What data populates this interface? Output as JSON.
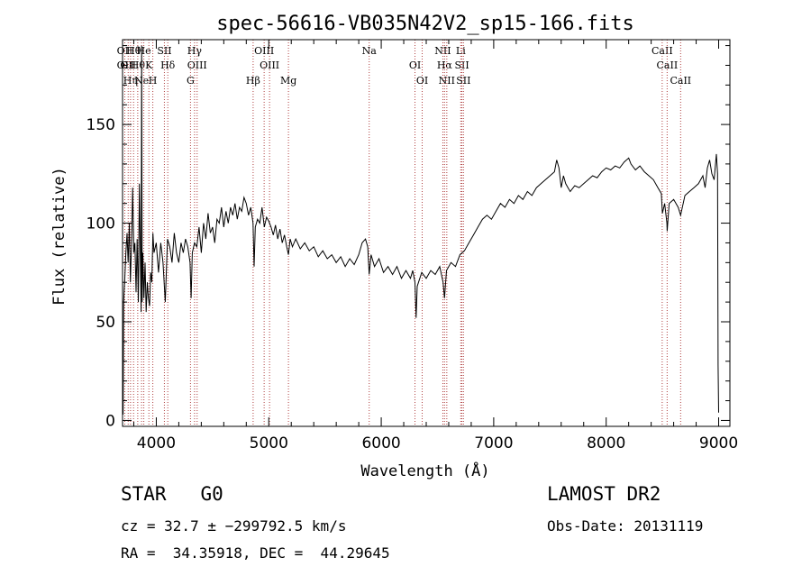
{
  "chart_data": {
    "type": "line",
    "title": "spec-56616-VB035N42V2_sp15-166.fits",
    "xlabel": "Wavelength (Å)",
    "ylabel": "Flux (relative)",
    "xlim": [
      3700,
      9100
    ],
    "ylim": [
      -3,
      193
    ],
    "x_ticks": [
      4000,
      5000,
      6000,
      7000,
      8000,
      9000
    ],
    "y_ticks": [
      0,
      50,
      100,
      150
    ],
    "grid": false,
    "series": [
      {
        "color": "#000000",
        "points": [
          [
            3700,
            28
          ],
          [
            3705,
            3
          ],
          [
            3710,
            60
          ],
          [
            3720,
            72
          ],
          [
            3730,
            85
          ],
          [
            3740,
            95
          ],
          [
            3750,
            80
          ],
          [
            3760,
            100
          ],
          [
            3770,
            70
          ],
          [
            3780,
            90
          ],
          [
            3790,
            118
          ],
          [
            3800,
            85
          ],
          [
            3810,
            90
          ],
          [
            3820,
            65
          ],
          [
            3830,
            92
          ],
          [
            3840,
            60
          ],
          [
            3850,
            120
          ],
          [
            3860,
            75
          ],
          [
            3865,
            55
          ],
          [
            3870,
            190
          ],
          [
            3875,
            60
          ],
          [
            3880,
            85
          ],
          [
            3890,
            62
          ],
          [
            3900,
            80
          ],
          [
            3910,
            55
          ],
          [
            3920,
            70
          ],
          [
            3930,
            62
          ],
          [
            3940,
            58
          ],
          [
            3950,
            75
          ],
          [
            3960,
            70
          ],
          [
            3970,
            95
          ],
          [
            3980,
            85
          ],
          [
            4000,
            90
          ],
          [
            4020,
            75
          ],
          [
            4040,
            90
          ],
          [
            4060,
            80
          ],
          [
            4080,
            60
          ],
          [
            4100,
            92
          ],
          [
            4120,
            88
          ],
          [
            4140,
            80
          ],
          [
            4160,
            95
          ],
          [
            4180,
            85
          ],
          [
            4200,
            80
          ],
          [
            4220,
            90
          ],
          [
            4240,
            85
          ],
          [
            4260,
            92
          ],
          [
            4280,
            88
          ],
          [
            4300,
            80
          ],
          [
            4310,
            62
          ],
          [
            4320,
            85
          ],
          [
            4340,
            90
          ],
          [
            4360,
            88
          ],
          [
            4380,
            98
          ],
          [
            4400,
            85
          ],
          [
            4420,
            100
          ],
          [
            4440,
            92
          ],
          [
            4460,
            105
          ],
          [
            4480,
            95
          ],
          [
            4500,
            98
          ],
          [
            4520,
            90
          ],
          [
            4540,
            102
          ],
          [
            4560,
            100
          ],
          [
            4580,
            108
          ],
          [
            4600,
            98
          ],
          [
            4620,
            106
          ],
          [
            4640,
            100
          ],
          [
            4660,
            108
          ],
          [
            4680,
            104
          ],
          [
            4700,
            110
          ],
          [
            4720,
            102
          ],
          [
            4740,
            108
          ],
          [
            4760,
            106
          ],
          [
            4780,
            113
          ],
          [
            4800,
            110
          ],
          [
            4820,
            104
          ],
          [
            4840,
            108
          ],
          [
            4860,
            100
          ],
          [
            4870,
            78
          ],
          [
            4880,
            98
          ],
          [
            4900,
            102
          ],
          [
            4920,
            100
          ],
          [
            4940,
            108
          ],
          [
            4960,
            98
          ],
          [
            4980,
            103
          ],
          [
            5000,
            101
          ],
          [
            5020,
            98
          ],
          [
            5040,
            94
          ],
          [
            5060,
            99
          ],
          [
            5080,
            92
          ],
          [
            5100,
            97
          ],
          [
            5120,
            90
          ],
          [
            5140,
            94
          ],
          [
            5160,
            88
          ],
          [
            5175,
            84
          ],
          [
            5190,
            92
          ],
          [
            5210,
            88
          ],
          [
            5240,
            92
          ],
          [
            5280,
            87
          ],
          [
            5320,
            90
          ],
          [
            5360,
            86
          ],
          [
            5400,
            88
          ],
          [
            5440,
            83
          ],
          [
            5480,
            86
          ],
          [
            5520,
            82
          ],
          [
            5560,
            84
          ],
          [
            5600,
            80
          ],
          [
            5640,
            83
          ],
          [
            5680,
            78
          ],
          [
            5720,
            82
          ],
          [
            5760,
            79
          ],
          [
            5800,
            84
          ],
          [
            5830,
            90
          ],
          [
            5860,
            92
          ],
          [
            5880,
            88
          ],
          [
            5893,
            74
          ],
          [
            5910,
            84
          ],
          [
            5940,
            78
          ],
          [
            5980,
            82
          ],
          [
            6020,
            75
          ],
          [
            6060,
            78
          ],
          [
            6100,
            74
          ],
          [
            6140,
            78
          ],
          [
            6180,
            72
          ],
          [
            6220,
            76
          ],
          [
            6260,
            72
          ],
          [
            6280,
            76
          ],
          [
            6300,
            70
          ],
          [
            6310,
            52
          ],
          [
            6320,
            68
          ],
          [
            6360,
            75
          ],
          [
            6400,
            72
          ],
          [
            6440,
            76
          ],
          [
            6480,
            74
          ],
          [
            6520,
            78
          ],
          [
            6550,
            70
          ],
          [
            6563,
            62
          ],
          [
            6580,
            76
          ],
          [
            6620,
            80
          ],
          [
            6660,
            78
          ],
          [
            6700,
            84
          ],
          [
            6740,
            86
          ],
          [
            6780,
            90
          ],
          [
            6820,
            94
          ],
          [
            6860,
            98
          ],
          [
            6900,
            102
          ],
          [
            6940,
            104
          ],
          [
            6980,
            102
          ],
          [
            7020,
            106
          ],
          [
            7060,
            110
          ],
          [
            7100,
            108
          ],
          [
            7140,
            112
          ],
          [
            7180,
            110
          ],
          [
            7220,
            114
          ],
          [
            7260,
            112
          ],
          [
            7300,
            116
          ],
          [
            7340,
            114
          ],
          [
            7380,
            118
          ],
          [
            7420,
            120
          ],
          [
            7460,
            122
          ],
          [
            7500,
            124
          ],
          [
            7540,
            126
          ],
          [
            7560,
            132
          ],
          [
            7580,
            128
          ],
          [
            7600,
            118
          ],
          [
            7620,
            124
          ],
          [
            7640,
            120
          ],
          [
            7660,
            118
          ],
          [
            7680,
            116
          ],
          [
            7720,
            119
          ],
          [
            7760,
            118
          ],
          [
            7800,
            120
          ],
          [
            7840,
            122
          ],
          [
            7880,
            124
          ],
          [
            7920,
            123
          ],
          [
            7960,
            126
          ],
          [
            8000,
            128
          ],
          [
            8040,
            127
          ],
          [
            8080,
            129
          ],
          [
            8120,
            128
          ],
          [
            8160,
            131
          ],
          [
            8200,
            133
          ],
          [
            8220,
            130
          ],
          [
            8260,
            127
          ],
          [
            8300,
            129
          ],
          [
            8340,
            126
          ],
          [
            8380,
            124
          ],
          [
            8420,
            122
          ],
          [
            8460,
            118
          ],
          [
            8490,
            115
          ],
          [
            8500,
            105
          ],
          [
            8520,
            110
          ],
          [
            8540,
            100
          ],
          [
            8542,
            96
          ],
          [
            8560,
            110
          ],
          [
            8600,
            112
          ],
          [
            8640,
            108
          ],
          [
            8662,
            104
          ],
          [
            8700,
            114
          ],
          [
            8740,
            116
          ],
          [
            8780,
            118
          ],
          [
            8820,
            120
          ],
          [
            8860,
            124
          ],
          [
            8880,
            118
          ],
          [
            8900,
            128
          ],
          [
            8920,
            132
          ],
          [
            8940,
            125
          ],
          [
            8960,
            122
          ],
          [
            8980,
            135
          ],
          [
            8990,
            125
          ],
          [
            8995,
            28
          ],
          [
            9000,
            4
          ]
        ]
      }
    ],
    "line_markers": [
      {
        "wavelength": 3720,
        "labels": [
          "OII",
          "OII"
        ]
      },
      {
        "wavelength": 3750,
        "labels": [
          "OII"
        ]
      },
      {
        "wavelength": 3771,
        "labels": [
          "Hη"
        ]
      },
      {
        "wavelength": 3798,
        "labels": [
          "Hθ"
        ]
      },
      {
        "wavelength": 3835,
        "labels": [
          "Hθ"
        ]
      },
      {
        "wavelength": 3869,
        "labels": [
          "Ne"
        ]
      },
      {
        "wavelength": 3889,
        "labels": [
          "He"
        ]
      },
      {
        "wavelength": 3934,
        "labels": [
          "K"
        ]
      },
      {
        "wavelength": 3969,
        "labels": [
          "H"
        ]
      },
      {
        "wavelength": 4072,
        "labels": [
          "SII"
        ]
      },
      {
        "wavelength": 4102,
        "labels": [
          "Hδ"
        ]
      },
      {
        "wavelength": 4304,
        "labels": [
          "G"
        ]
      },
      {
        "wavelength": 4340,
        "labels": [
          "Hγ"
        ]
      },
      {
        "wavelength": 4363,
        "labels": [
          "OIII"
        ]
      },
      {
        "wavelength": 4861,
        "labels": [
          "Hβ"
        ]
      },
      {
        "wavelength": 4959,
        "labels": [
          "OIII"
        ]
      },
      {
        "wavelength": 5007,
        "labels": [
          "OIII"
        ]
      },
      {
        "wavelength": 5175,
        "labels": [
          "Mg"
        ]
      },
      {
        "wavelength": 5893,
        "labels": [
          "Na"
        ]
      },
      {
        "wavelength": 6300,
        "labels": [
          "OI"
        ]
      },
      {
        "wavelength": 6364,
        "labels": [
          "OI"
        ]
      },
      {
        "wavelength": 6548,
        "labels": [
          "NII"
        ]
      },
      {
        "wavelength": 6563,
        "labels": [
          "Hα"
        ]
      },
      {
        "wavelength": 6583,
        "labels": [
          "NII"
        ]
      },
      {
        "wavelength": 6707,
        "labels": [
          "Li"
        ]
      },
      {
        "wavelength": 6717,
        "labels": [
          "SII"
        ]
      },
      {
        "wavelength": 6731,
        "labels": [
          "SII"
        ]
      },
      {
        "wavelength": 8498,
        "labels": [
          "CaII"
        ]
      },
      {
        "wavelength": 8542,
        "labels": [
          "CaII"
        ]
      },
      {
        "wavelength": 8662,
        "labels": [
          "CaII"
        ]
      }
    ]
  },
  "footer": {
    "object_line": "STAR   G0",
    "survey": "LAMOST DR2",
    "cz_line": "cz = 32.7 ± −299792.5 km/s",
    "obs_date": "Obs-Date: 20131119",
    "radec_line": "RA =  34.35918, DEC =  44.29645"
  },
  "colors": {
    "spectrum": "#000000",
    "marker_line": "#b04040",
    "axes": "#000000"
  }
}
